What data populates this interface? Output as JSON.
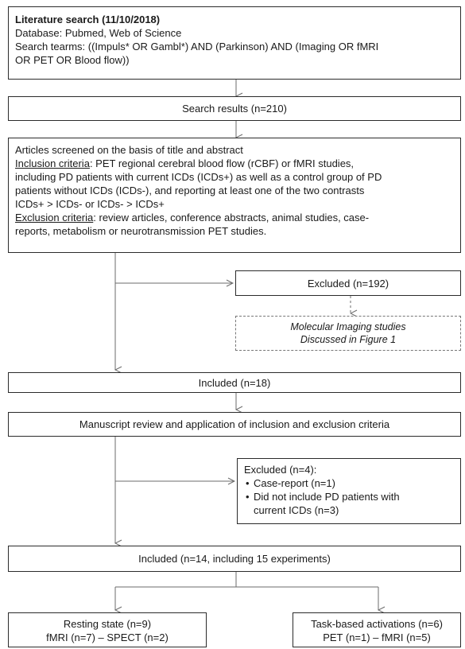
{
  "search_box": {
    "title": "Literature search (11/10/2018)",
    "database": "Database: Pubmed, Web of Science",
    "terms_line1": "Search tearms: ((Impuls* OR Gambl*) AND (Parkinson) AND (Imaging OR fMRI",
    "terms_line2": "OR PET OR Blood flow))"
  },
  "search_results": "Search results (n=210)",
  "screening_box": {
    "intro": "Articles screened on the basis of title and abstract",
    "inclusion_label": "Inclusion criteria",
    "inclusion_line1": ": PET regional cerebral blood flow (rCBF) or fMRI studies,",
    "inclusion_line2": "including PD patients with current ICDs (ICDs+) as well as a control group of PD",
    "inclusion_line3": "patients without ICDs (ICDs-), and reporting at least one of the two contrasts",
    "inclusion_line4": "ICDs+ >  ICDs- or ICDs- > ICDs+",
    "exclusion_label": "Exclusion criteria",
    "exclusion_line1": ": review articles, conference abstracts, animal studies, case-",
    "exclusion_line2": "reports, metabolism or neurotransmission PET studies."
  },
  "excluded_1": "Excluded (n=192)",
  "molecular_box": {
    "line1": "Molecular Imaging studies",
    "line2": "Discussed in Figure 1"
  },
  "included_1": "Included (n=18)",
  "manuscript_review": "Manuscript review and application of inclusion and exclusion criteria",
  "excluded_2": {
    "title": "Excluded (n=4):",
    "items": [
      {
        "line1": "Case-report (n=1)",
        "line2": ""
      },
      {
        "line1": "Did not include PD patients with",
        "line2": "current ICDs (n=3)"
      }
    ]
  },
  "included_2": "Included (n=14, including 15 experiments)",
  "resting_state": {
    "line1": "Resting state (n=9)",
    "line2": "fMRI (n=7) – SPECT (n=2)"
  },
  "task_based": {
    "line1": "Task-based activations (n=6)",
    "line2": "PET (n=1) – fMRI (n=5)"
  },
  "colors": {
    "box_border": "#2b2b2b",
    "arrow": "#6b6b6b",
    "dashed_border": "#777777",
    "text": "#1a1a1a"
  }
}
